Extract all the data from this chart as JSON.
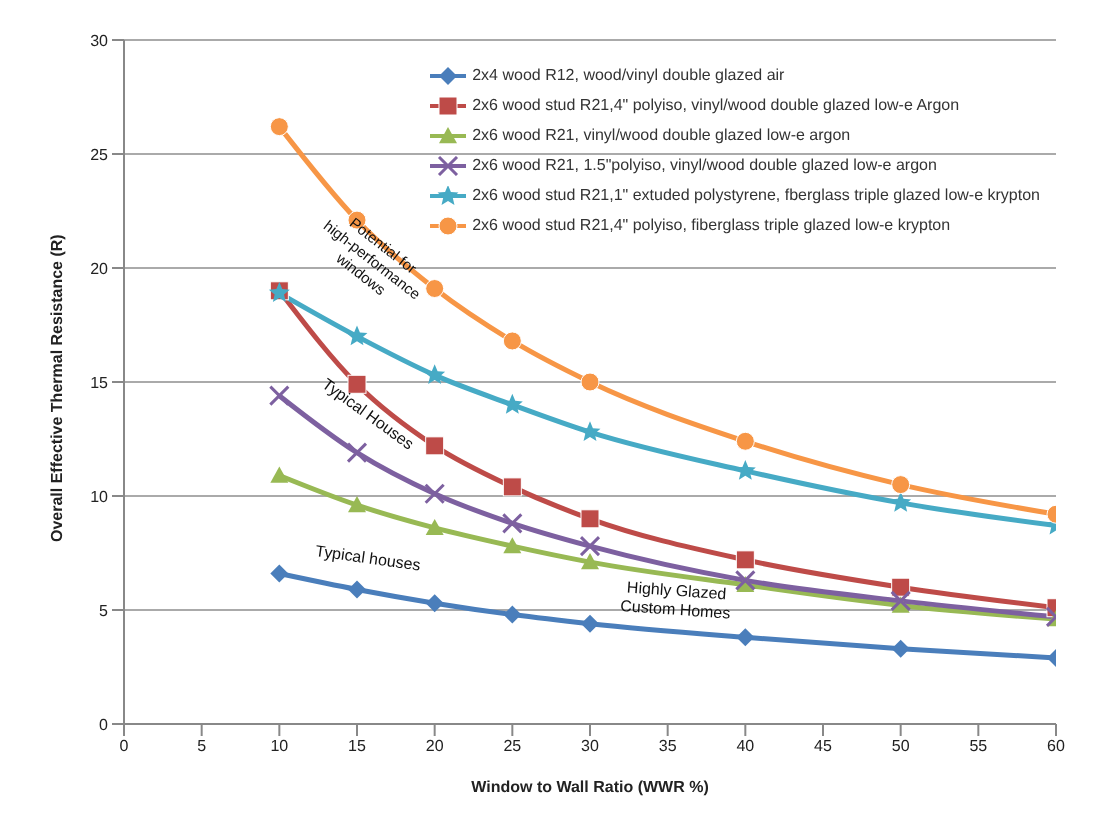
{
  "chart_data": {
    "type": "line",
    "xlabel": "Window to Wall Ratio (WWR %)",
    "ylabel": "Overall Effective Thermal Resistance (R)",
    "x": [
      10,
      15,
      20,
      25,
      30,
      40,
      50,
      60
    ],
    "xlim": [
      0,
      60
    ],
    "xticks": [
      0,
      5,
      10,
      15,
      20,
      25,
      30,
      35,
      40,
      45,
      50,
      55,
      60
    ],
    "ylim": [
      0,
      30
    ],
    "yticks": [
      0,
      5,
      10,
      15,
      20,
      25,
      30
    ],
    "grid": "y",
    "legend": "top right",
    "series": [
      {
        "name": "2x4 wood R12, wood/vinyl double glazed air",
        "color": "#4a7ebb",
        "marker": "diamond",
        "values": [
          6.6,
          5.9,
          5.3,
          4.8,
          4.4,
          3.8,
          3.3,
          2.9
        ]
      },
      {
        "name": "2x6 wood stud R21,4\" polyiso, vinyl/wood double glazed low-e Argon",
        "color": "#be4b48",
        "marker": "square",
        "values": [
          19,
          14.9,
          12.2,
          10.4,
          9.0,
          7.2,
          6.0,
          5.1
        ]
      },
      {
        "name": "2x6 wood R21, vinyl/wood double glazed low-e argon",
        "color": "#98b954",
        "marker": "triangle",
        "values": [
          10.9,
          9.6,
          8.6,
          7.8,
          7.1,
          6.1,
          5.2,
          4.6
        ]
      },
      {
        "name": "2x6 wood R21, 1.5\"polyiso, vinyl/wood double glazed low-e argon",
        "color": "#7d60a0",
        "marker": "cross",
        "values": [
          14.4,
          11.9,
          10.1,
          8.8,
          7.8,
          6.3,
          5.4,
          4.7
        ]
      },
      {
        "name": "2x6 wood stud R21,1\" extuded polystyrene, fberglass triple glazed low-e krypton",
        "color": "#46aac5",
        "marker": "star",
        "values": [
          18.9,
          17.0,
          15.3,
          14.0,
          12.8,
          11.1,
          9.7,
          8.7
        ]
      },
      {
        "name": "2x6 wood stud R21,4\" polyiso, fiberglass triple glazed low-e krypton",
        "color": "#f79646",
        "marker": "circle",
        "values": [
          26.2,
          22.1,
          19.1,
          16.8,
          15.0,
          12.4,
          10.5,
          9.2
        ]
      }
    ],
    "annotations": [
      "Potential for high-performance windows",
      "Typical Houses",
      "Typical houses",
      "Highly Glazed Custom Homes"
    ]
  }
}
